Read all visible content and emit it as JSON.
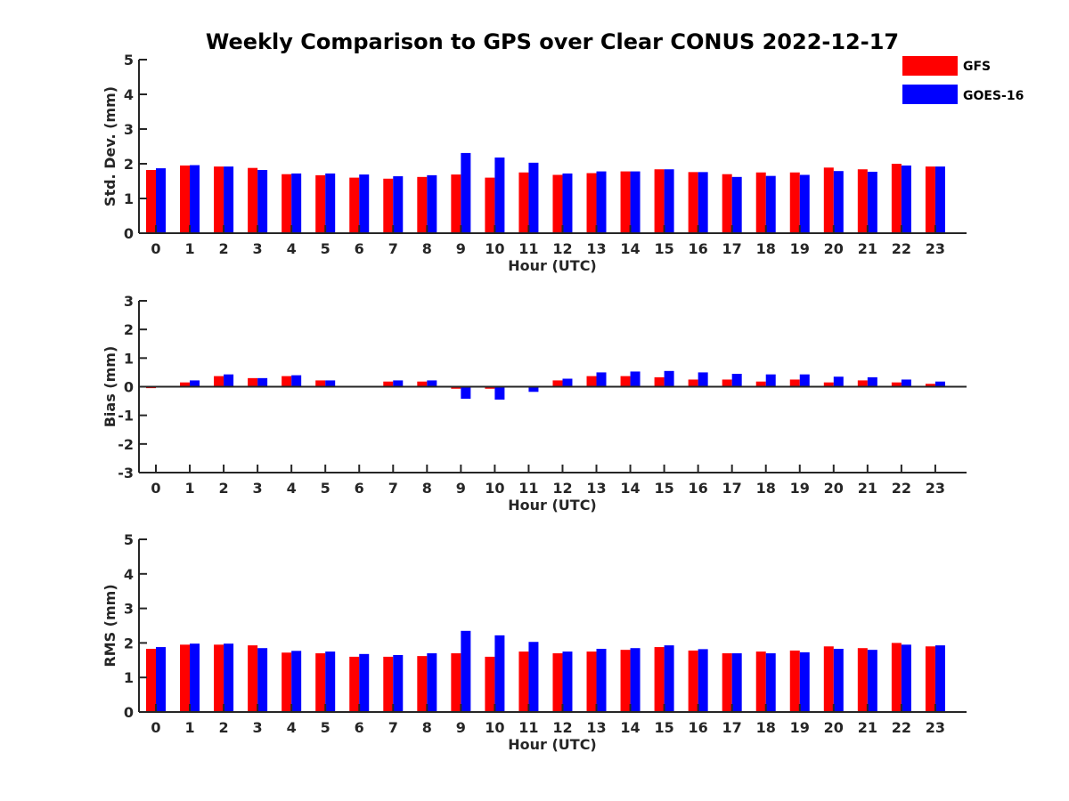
{
  "title": "Weekly Comparison to GPS over Clear CONUS 2022-12-17",
  "colors": {
    "GFS": "#ff0000",
    "GOES-16": "#0000ff"
  },
  "legend": {
    "placement": "top-right",
    "entries": [
      "GFS",
      "GOES-16"
    ]
  },
  "chart_data": [
    {
      "type": "bar",
      "ylabel": "Std. Dev. (mm)",
      "xlabel": "Hour (UTC)",
      "ylim": [
        0,
        5
      ],
      "yticks": [
        0,
        1,
        2,
        3,
        4,
        5
      ],
      "categories": [
        "0",
        "1",
        "2",
        "3",
        "4",
        "5",
        "6",
        "7",
        "8",
        "9",
        "10",
        "11",
        "12",
        "13",
        "14",
        "15",
        "16",
        "17",
        "18",
        "19",
        "20",
        "21",
        "22",
        "23"
      ],
      "series": [
        {
          "name": "GFS",
          "values": [
            1.82,
            1.95,
            1.92,
            1.88,
            1.7,
            1.67,
            1.6,
            1.57,
            1.62,
            1.69,
            1.6,
            1.75,
            1.68,
            1.73,
            1.78,
            1.84,
            1.76,
            1.7,
            1.75,
            1.75,
            1.89,
            1.84,
            2.0,
            1.92
          ]
        },
        {
          "name": "GOES-16",
          "values": [
            1.87,
            1.96,
            1.92,
            1.82,
            1.72,
            1.72,
            1.69,
            1.64,
            1.67,
            2.31,
            2.18,
            2.03,
            1.72,
            1.78,
            1.78,
            1.84,
            1.76,
            1.62,
            1.65,
            1.68,
            1.79,
            1.77,
            1.95,
            1.92
          ]
        }
      ]
    },
    {
      "type": "bar",
      "ylabel": "Bias (mm)",
      "xlabel": "Hour (UTC)",
      "ylim": [
        -3,
        3
      ],
      "yticks": [
        -3,
        -2,
        -1,
        0,
        1,
        2,
        3
      ],
      "categories": [
        "0",
        "1",
        "2",
        "3",
        "4",
        "5",
        "6",
        "7",
        "8",
        "9",
        "10",
        "11",
        "12",
        "13",
        "14",
        "15",
        "16",
        "17",
        "18",
        "19",
        "20",
        "21",
        "22",
        "23"
      ],
      "series": [
        {
          "name": "GFS",
          "values": [
            -0.05,
            0.15,
            0.37,
            0.3,
            0.37,
            0.22,
            0.0,
            0.18,
            0.18,
            -0.07,
            -0.07,
            0.02,
            0.22,
            0.37,
            0.37,
            0.33,
            0.25,
            0.25,
            0.18,
            0.25,
            0.15,
            0.22,
            0.15,
            0.1
          ]
        },
        {
          "name": "GOES-16",
          "values": [
            0.0,
            0.22,
            0.43,
            0.3,
            0.4,
            0.22,
            0.03,
            0.22,
            0.22,
            -0.42,
            -0.45,
            -0.18,
            0.28,
            0.5,
            0.53,
            0.55,
            0.5,
            0.45,
            0.43,
            0.43,
            0.35,
            0.33,
            0.25,
            0.18
          ]
        }
      ]
    },
    {
      "type": "bar",
      "ylabel": "RMS (mm)",
      "xlabel": "Hour (UTC)",
      "ylim": [
        0,
        5
      ],
      "yticks": [
        0,
        1,
        2,
        3,
        4,
        5
      ],
      "categories": [
        "0",
        "1",
        "2",
        "3",
        "4",
        "5",
        "6",
        "7",
        "8",
        "9",
        "10",
        "11",
        "12",
        "13",
        "14",
        "15",
        "16",
        "17",
        "18",
        "19",
        "20",
        "21",
        "22",
        "23"
      ],
      "series": [
        {
          "name": "GFS",
          "values": [
            1.83,
            1.95,
            1.95,
            1.93,
            1.72,
            1.7,
            1.6,
            1.6,
            1.62,
            1.7,
            1.6,
            1.75,
            1.7,
            1.75,
            1.8,
            1.88,
            1.78,
            1.7,
            1.75,
            1.78,
            1.9,
            1.85,
            2.0,
            1.9
          ]
        },
        {
          "name": "GOES-16",
          "values": [
            1.88,
            1.98,
            1.98,
            1.85,
            1.77,
            1.75,
            1.68,
            1.65,
            1.7,
            2.35,
            2.22,
            2.03,
            1.75,
            1.83,
            1.85,
            1.93,
            1.82,
            1.7,
            1.7,
            1.73,
            1.83,
            1.8,
            1.95,
            1.93
          ]
        }
      ]
    }
  ]
}
